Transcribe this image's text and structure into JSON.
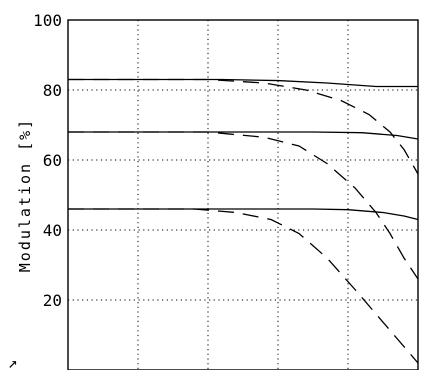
{
  "chart_data": {
    "type": "line",
    "ylabel": "Modulation [%]",
    "xlabel": "",
    "ylim": [
      0,
      100
    ],
    "xlim": [
      0,
      5
    ],
    "y_ticks": [
      {
        "value": 100,
        "label": "100"
      },
      {
        "value": 80,
        "label": "80"
      },
      {
        "value": 60,
        "label": "60"
      },
      {
        "value": 40,
        "label": "40"
      },
      {
        "value": 20,
        "label": "20"
      }
    ],
    "x_gridlines": [
      1,
      2,
      3,
      4
    ],
    "y_gridlines": [
      20,
      40,
      60,
      80
    ],
    "grid": true,
    "corner_mark": "↗",
    "series": [
      {
        "style": "solid",
        "x": [
          0,
          2.2,
          3,
          3.7,
          4.4,
          5
        ],
        "y": [
          83,
          83,
          82.7,
          82,
          81,
          81
        ]
      },
      {
        "style": "solid",
        "x": [
          0,
          2.5,
          3.5,
          4.2,
          4.7,
          5
        ],
        "y": [
          68,
          68,
          68,
          67.8,
          67,
          66
        ]
      },
      {
        "style": "solid",
        "x": [
          0,
          2.5,
          3.5,
          4,
          4.5,
          4.8,
          5
        ],
        "y": [
          46,
          46,
          46,
          45.8,
          45,
          44,
          43
        ]
      },
      {
        "style": "dashed",
        "x": [
          0,
          2,
          2.8,
          3.4,
          3.9,
          4.3,
          4.6,
          4.8,
          5
        ],
        "y": [
          83,
          83,
          82,
          80,
          77,
          73,
          68,
          63,
          56
        ]
      },
      {
        "style": "dashed",
        "x": [
          0,
          2,
          2.8,
          3.3,
          3.7,
          4.1,
          4.4,
          4.6,
          4.8,
          5
        ],
        "y": [
          68,
          68,
          66.5,
          64,
          59,
          52,
          45,
          39,
          32,
          26
        ]
      },
      {
        "style": "dashed",
        "x": [
          0,
          1.8,
          2.4,
          2.9,
          3.3,
          3.7,
          4.1,
          4.4,
          4.7,
          5
        ],
        "y": [
          46,
          46,
          45,
          43,
          39,
          32,
          23,
          16,
          9,
          2
        ]
      }
    ]
  }
}
